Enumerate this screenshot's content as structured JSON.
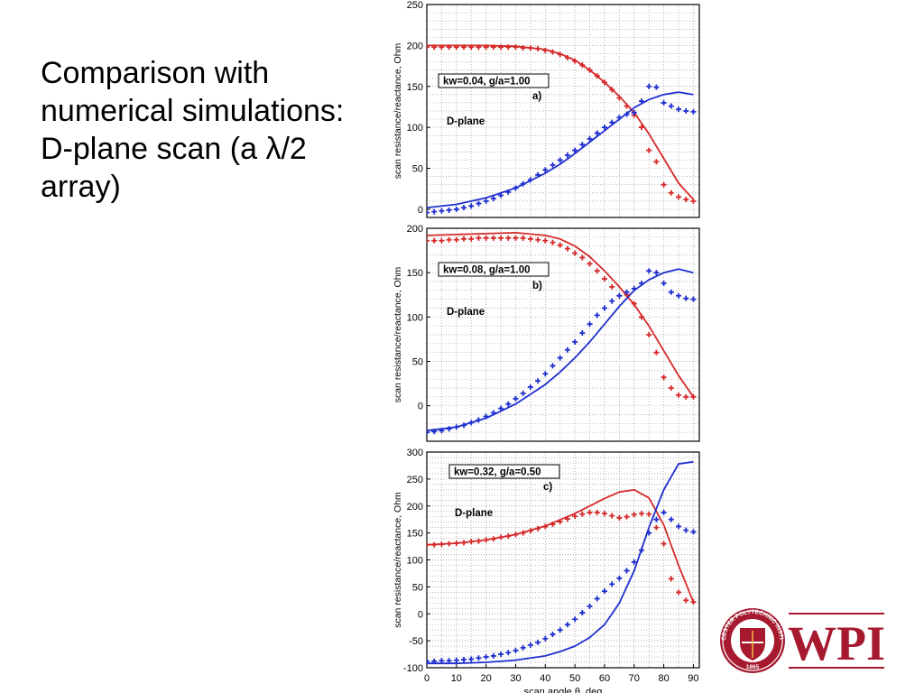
{
  "slide": {
    "title_lines": [
      "Comparison with",
      "numerical simulations:",
      "D-plane scan (a λ/2",
      "array)"
    ]
  },
  "logo": {
    "text": "WPI",
    "seal_text": "WORCESTER POLYTECHNIC INSTITUTE 1865",
    "color": "#a6192e"
  },
  "colors": {
    "red": "#d62a2a",
    "blue": "#1f2fcf"
  },
  "chart_data": [
    {
      "type": "line",
      "panel": "a)",
      "annotation": "kw=0.04, g/a=1.00",
      "label": "D-plane",
      "ylabel": "scan resistance/reactance, Ohm",
      "xlabel": "",
      "xlim": [
        0,
        92
      ],
      "ylim": [
        -10,
        250
      ],
      "yticks": [
        0,
        50,
        100,
        150,
        200,
        250
      ],
      "xticks": [],
      "grid": true,
      "series": [
        {
          "color": "red",
          "style": "line",
          "x": [
            0,
            10,
            20,
            30,
            40,
            45,
            50,
            55,
            60,
            65,
            70,
            75,
            80,
            85,
            90
          ],
          "y": [
            200,
            200,
            200,
            199,
            195,
            190,
            182,
            170,
            155,
            138,
            118,
            92,
            62,
            32,
            12
          ]
        },
        {
          "color": "blue",
          "style": "line",
          "x": [
            0,
            10,
            20,
            30,
            40,
            45,
            50,
            55,
            60,
            65,
            70,
            75,
            80,
            85,
            90
          ],
          "y": [
            2,
            6,
            14,
            26,
            44,
            55,
            68,
            82,
            96,
            110,
            124,
            134,
            140,
            143,
            140
          ]
        },
        {
          "color": "red",
          "style": "markers",
          "x": [
            0,
            2.5,
            5,
            7.5,
            10,
            12.5,
            15,
            17.5,
            20,
            22.5,
            25,
            27.5,
            30,
            32.5,
            35,
            37.5,
            40,
            42.5,
            45,
            47.5,
            50,
            52.5,
            55,
            57.5,
            60,
            62.5,
            65,
            67.5,
            70,
            72.5,
            75,
            77.5,
            80,
            82.5,
            85,
            87.5,
            90
          ],
          "y": [
            198,
            198,
            198,
            198,
            198,
            198,
            198,
            198,
            198,
            198,
            198,
            198,
            198,
            197,
            197,
            196,
            194,
            192,
            189,
            185,
            181,
            176,
            170,
            163,
            155,
            146,
            136,
            126,
            115,
            100,
            72,
            58,
            30,
            20,
            15,
            12,
            10
          ]
        },
        {
          "color": "blue",
          "style": "markers",
          "x": [
            0,
            2.5,
            5,
            7.5,
            10,
            12.5,
            15,
            17.5,
            20,
            22.5,
            25,
            27.5,
            30,
            32.5,
            35,
            37.5,
            40,
            42.5,
            45,
            47.5,
            50,
            52.5,
            55,
            57.5,
            60,
            62.5,
            65,
            67.5,
            70,
            72.5,
            75,
            77.5,
            80,
            82.5,
            85,
            87.5,
            90
          ],
          "y": [
            -4,
            -3,
            -2,
            -1,
            0,
            2,
            4,
            7,
            10,
            13,
            17,
            21,
            26,
            31,
            36,
            42,
            48,
            54,
            60,
            66,
            72,
            79,
            86,
            93,
            100,
            106,
            112,
            116,
            118,
            132,
            150,
            149,
            130,
            126,
            122,
            120,
            119
          ]
        }
      ]
    },
    {
      "type": "line",
      "panel": "b)",
      "annotation": "kw=0.08, g/a=1.00",
      "label": "D-plane",
      "ylabel": "scan resistance/reactance, Ohm",
      "xlabel": "",
      "xlim": [
        0,
        92
      ],
      "ylim": [
        -40,
        200
      ],
      "yticks": [
        0,
        50,
        100,
        150,
        200
      ],
      "xticks": [],
      "grid": true,
      "series": [
        {
          "color": "red",
          "style": "line",
          "x": [
            0,
            10,
            20,
            30,
            40,
            45,
            50,
            55,
            60,
            65,
            70,
            75,
            80,
            85,
            90
          ],
          "y": [
            192,
            193,
            194,
            195,
            192,
            188,
            180,
            168,
            152,
            134,
            114,
            90,
            62,
            34,
            10
          ]
        },
        {
          "color": "blue",
          "style": "line",
          "x": [
            0,
            10,
            20,
            30,
            40,
            45,
            50,
            55,
            60,
            65,
            70,
            75,
            80,
            85,
            90
          ],
          "y": [
            -28,
            -24,
            -14,
            2,
            24,
            38,
            54,
            72,
            92,
            112,
            130,
            142,
            150,
            154,
            150
          ]
        },
        {
          "color": "red",
          "style": "markers",
          "x": [
            0,
            2.5,
            5,
            7.5,
            10,
            12.5,
            15,
            17.5,
            20,
            22.5,
            25,
            27.5,
            30,
            32.5,
            35,
            37.5,
            40,
            42.5,
            45,
            47.5,
            50,
            52.5,
            55,
            57.5,
            60,
            62.5,
            65,
            67.5,
            70,
            72.5,
            75,
            77.5,
            80,
            82.5,
            85,
            87.5,
            90
          ],
          "y": [
            186,
            186,
            186,
            187,
            187,
            188,
            188,
            189,
            189,
            189,
            189,
            189,
            189,
            189,
            188,
            187,
            186,
            184,
            181,
            177,
            172,
            167,
            160,
            152,
            143,
            134,
            124,
            125,
            115,
            100,
            80,
            60,
            32,
            20,
            12,
            10,
            10
          ]
        },
        {
          "color": "blue",
          "style": "markers",
          "x": [
            0,
            2.5,
            5,
            7.5,
            10,
            12.5,
            15,
            17.5,
            20,
            22.5,
            25,
            27.5,
            30,
            32.5,
            35,
            37.5,
            40,
            42.5,
            45,
            47.5,
            50,
            52.5,
            55,
            57.5,
            60,
            62.5,
            65,
            67.5,
            70,
            72.5,
            75,
            77.5,
            80,
            82.5,
            85,
            87.5,
            90
          ],
          "y": [
            -30,
            -29,
            -28,
            -26,
            -24,
            -22,
            -19,
            -16,
            -12,
            -8,
            -3,
            2,
            8,
            14,
            21,
            28,
            36,
            45,
            54,
            63,
            72,
            82,
            92,
            102,
            110,
            118,
            124,
            128,
            132,
            138,
            152,
            150,
            138,
            128,
            124,
            121,
            120
          ]
        }
      ]
    },
    {
      "type": "line",
      "panel": "c)",
      "annotation": "kw=0.32, g/a=0.50",
      "label": "D-plane",
      "ylabel": "scan resistance/reactance, Ohm",
      "xlabel": "scan angle θ, deg",
      "xlim": [
        0,
        92
      ],
      "ylim": [
        -100,
        300
      ],
      "yticks": [
        -100,
        -50,
        0,
        50,
        100,
        150,
        200,
        250,
        300
      ],
      "xticks": [
        0,
        10,
        20,
        30,
        40,
        50,
        60,
        70,
        80,
        90
      ],
      "grid": true,
      "series": [
        {
          "color": "red",
          "style": "line",
          "x": [
            0,
            10,
            20,
            30,
            40,
            50,
            55,
            60,
            65,
            70,
            75,
            80,
            85,
            90
          ],
          "y": [
            128,
            131,
            137,
            147,
            163,
            186,
            200,
            214,
            226,
            230,
            215,
            165,
            90,
            22
          ]
        },
        {
          "color": "blue",
          "style": "line",
          "x": [
            0,
            10,
            20,
            30,
            40,
            45,
            50,
            55,
            60,
            65,
            70,
            75,
            80,
            85,
            90
          ],
          "y": [
            -92,
            -92,
            -90,
            -86,
            -78,
            -70,
            -60,
            -44,
            -20,
            20,
            80,
            160,
            230,
            278,
            282
          ]
        },
        {
          "color": "red",
          "style": "markers",
          "x": [
            0,
            2.5,
            5,
            7.5,
            10,
            12.5,
            15,
            17.5,
            20,
            22.5,
            25,
            27.5,
            30,
            32.5,
            35,
            37.5,
            40,
            42.5,
            45,
            47.5,
            50,
            52.5,
            55,
            57.5,
            60,
            62.5,
            65,
            67.5,
            70,
            72.5,
            75,
            77.5,
            80,
            82.5,
            85,
            87.5,
            90
          ],
          "y": [
            128,
            128,
            129,
            130,
            131,
            132,
            134,
            135,
            137,
            139,
            142,
            144,
            147,
            150,
            154,
            158,
            162,
            166,
            171,
            176,
            181,
            185,
            188,
            188,
            186,
            182,
            178,
            180,
            184,
            186,
            185,
            160,
            130,
            65,
            40,
            25,
            22
          ]
        },
        {
          "color": "blue",
          "style": "markers",
          "x": [
            0,
            2.5,
            5,
            7.5,
            10,
            12.5,
            15,
            17.5,
            20,
            22.5,
            25,
            27.5,
            30,
            32.5,
            35,
            37.5,
            40,
            42.5,
            45,
            47.5,
            50,
            52.5,
            55,
            57.5,
            60,
            62.5,
            65,
            67.5,
            70,
            72.5,
            75,
            77.5,
            80,
            82.5,
            85,
            87.5,
            90
          ],
          "y": [
            -88,
            -88,
            -87,
            -87,
            -86,
            -85,
            -84,
            -82,
            -80,
            -78,
            -75,
            -72,
            -68,
            -63,
            -58,
            -53,
            -46,
            -38,
            -30,
            -20,
            -10,
            2,
            14,
            28,
            42,
            55,
            66,
            80,
            96,
            118,
            150,
            175,
            188,
            175,
            162,
            155,
            152
          ]
        }
      ]
    }
  ]
}
